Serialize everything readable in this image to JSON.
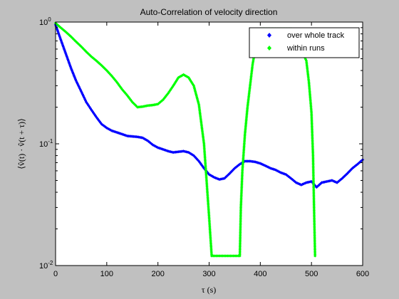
{
  "chart_data": {
    "type": "scatter",
    "title": "Auto-Correlation of velocity direction",
    "xlabel": "τ (s)",
    "ylabel": "⟨v̂(t) · v̂(t + τ)⟩",
    "xlim": [
      0,
      600
    ],
    "ylim": [
      0.01,
      1
    ],
    "yscale": "log",
    "grid": false,
    "legend_position": "top-right",
    "x_ticks": [
      0,
      100,
      200,
      300,
      400,
      500,
      600
    ],
    "y_ticks": [
      {
        "value": 1,
        "base": "10",
        "exp": "0"
      },
      {
        "value": 0.1,
        "base": "10",
        "exp": "-1"
      },
      {
        "value": 0.01,
        "base": "10",
        "exp": "-2"
      }
    ],
    "series": [
      {
        "name": "over whole track",
        "color": "#0000ff",
        "marker": "diamond",
        "points": [
          [
            0,
            0.95
          ],
          [
            10,
            0.72
          ],
          [
            20,
            0.55
          ],
          [
            30,
            0.42
          ],
          [
            40,
            0.33
          ],
          [
            50,
            0.27
          ],
          [
            60,
            0.22
          ],
          [
            70,
            0.19
          ],
          [
            80,
            0.165
          ],
          [
            90,
            0.145
          ],
          [
            100,
            0.135
          ],
          [
            110,
            0.128
          ],
          [
            120,
            0.124
          ],
          [
            130,
            0.12
          ],
          [
            140,
            0.116
          ],
          [
            150,
            0.115
          ],
          [
            160,
            0.114
          ],
          [
            170,
            0.112
          ],
          [
            180,
            0.106
          ],
          [
            190,
            0.098
          ],
          [
            200,
            0.093
          ],
          [
            210,
            0.09
          ],
          [
            220,
            0.087
          ],
          [
            230,
            0.085
          ],
          [
            240,
            0.086
          ],
          [
            250,
            0.087
          ],
          [
            260,
            0.085
          ],
          [
            270,
            0.08
          ],
          [
            280,
            0.072
          ],
          [
            290,
            0.063
          ],
          [
            300,
            0.056
          ],
          [
            310,
            0.053
          ],
          [
            320,
            0.051
          ],
          [
            330,
            0.052
          ],
          [
            340,
            0.057
          ],
          [
            350,
            0.063
          ],
          [
            360,
            0.068
          ],
          [
            370,
            0.072
          ],
          [
            380,
            0.072
          ],
          [
            390,
            0.071
          ],
          [
            400,
            0.069
          ],
          [
            410,
            0.066
          ],
          [
            420,
            0.063
          ],
          [
            430,
            0.061
          ],
          [
            440,
            0.058
          ],
          [
            450,
            0.056
          ],
          [
            460,
            0.052
          ],
          [
            470,
            0.048
          ],
          [
            480,
            0.046
          ],
          [
            490,
            0.048
          ],
          [
            500,
            0.049
          ],
          [
            510,
            0.044
          ],
          [
            520,
            0.048
          ],
          [
            530,
            0.049
          ],
          [
            540,
            0.05
          ],
          [
            550,
            0.048
          ],
          [
            560,
            0.052
          ],
          [
            570,
            0.057
          ],
          [
            580,
            0.063
          ],
          [
            590,
            0.068
          ],
          [
            600,
            0.074
          ]
        ]
      },
      {
        "name": "within runs",
        "color": "#00ff00",
        "marker": "diamond",
        "points": [
          [
            0,
            0.98
          ],
          [
            10,
            0.9
          ],
          [
            20,
            0.83
          ],
          [
            30,
            0.76
          ],
          [
            40,
            0.69
          ],
          [
            50,
            0.63
          ],
          [
            60,
            0.57
          ],
          [
            70,
            0.52
          ],
          [
            80,
            0.48
          ],
          [
            90,
            0.44
          ],
          [
            100,
            0.4
          ],
          [
            110,
            0.36
          ],
          [
            120,
            0.32
          ],
          [
            130,
            0.28
          ],
          [
            140,
            0.25
          ],
          [
            150,
            0.22
          ],
          [
            160,
            0.2
          ],
          [
            170,
            0.202
          ],
          [
            180,
            0.206
          ],
          [
            190,
            0.208
          ],
          [
            200,
            0.212
          ],
          [
            210,
            0.23
          ],
          [
            220,
            0.26
          ],
          [
            230,
            0.3
          ],
          [
            240,
            0.35
          ],
          [
            250,
            0.37
          ],
          [
            260,
            0.35
          ],
          [
            270,
            0.3
          ],
          [
            280,
            0.21
          ],
          [
            290,
            0.1
          ],
          [
            295,
            0.05
          ],
          [
            300,
            0.025
          ],
          [
            305,
            0.012
          ],
          [
            360,
            0.012
          ],
          [
            362,
            0.03
          ],
          [
            365,
            0.06
          ],
          [
            370,
            0.12
          ],
          [
            375,
            0.2
          ],
          [
            380,
            0.3
          ],
          [
            385,
            0.45
          ],
          [
            390,
            0.6
          ],
          [
            395,
            0.75
          ],
          [
            400,
            0.88
          ],
          [
            460,
            0.88
          ],
          [
            470,
            0.72
          ],
          [
            480,
            0.6
          ],
          [
            490,
            0.48
          ],
          [
            495,
            0.32
          ],
          [
            500,
            0.18
          ],
          [
            503,
            0.08
          ],
          [
            505,
            0.03
          ],
          [
            507,
            0.012
          ]
        ]
      }
    ]
  }
}
